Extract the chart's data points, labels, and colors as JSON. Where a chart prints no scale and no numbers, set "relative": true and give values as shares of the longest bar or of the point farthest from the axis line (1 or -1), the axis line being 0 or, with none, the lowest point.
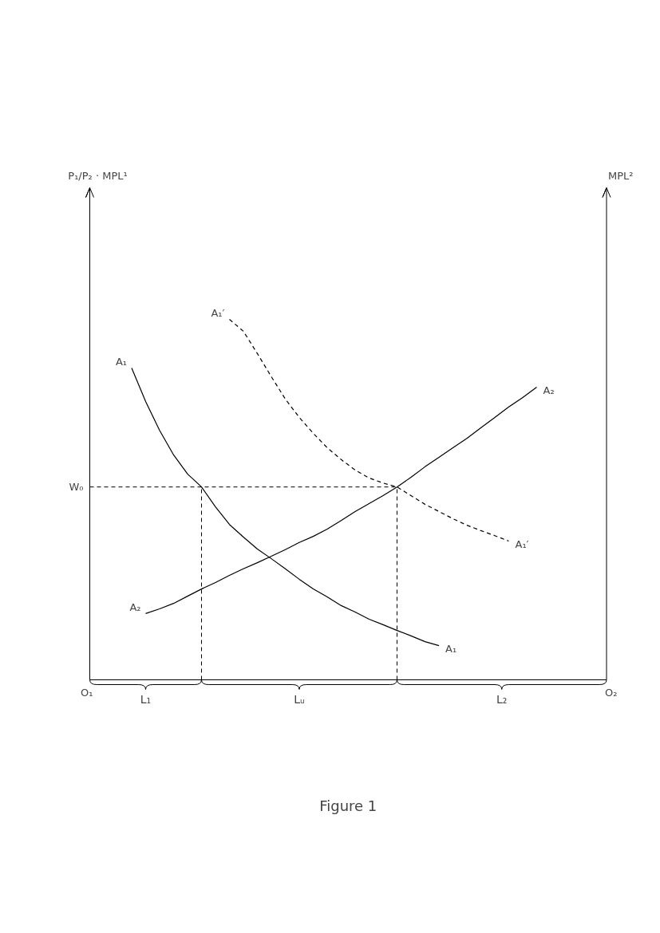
{
  "chart_data": {
    "type": "line",
    "relative": true,
    "title": "Figure 1",
    "grid": false,
    "marker": "none",
    "categories": [
      null,
      null,
      null,
      null,
      null,
      null,
      null,
      null,
      null,
      null,
      null,
      null,
      null,
      null,
      null,
      null,
      null,
      null,
      null,
      null,
      null,
      null,
      null,
      null,
      null,
      null,
      null,
      null,
      null,
      null,
      null,
      null,
      null,
      null,
      null,
      null,
      null,
      null
    ],
    "series": [
      {
        "name": "A₁",
        "color": "#000000",
        "line_style": "solid",
        "values": [
          null,
          null,
          null,
          0.865,
          0.772,
          0.692,
          0.624,
          0.571,
          0.535,
          0.48,
          0.431,
          0.396,
          0.363,
          0.336,
          0.308,
          0.279,
          0.252,
          0.23,
          0.206,
          0.188,
          0.168,
          0.153,
          0.137,
          0.122,
          0.106,
          0.095,
          null,
          null,
          null,
          null,
          null,
          null,
          null,
          null,
          null,
          null,
          null,
          null
        ]
      },
      {
        "name": "A₂",
        "color": "#000000",
        "line_style": "solid",
        "values": [
          null,
          null,
          null,
          null,
          0.184,
          0.197,
          0.212,
          0.232,
          0.252,
          0.27,
          0.29,
          0.308,
          0.325,
          0.343,
          0.361,
          0.381,
          0.398,
          0.418,
          0.442,
          0.467,
          0.489,
          0.511,
          0.535,
          0.562,
          0.591,
          0.617,
          0.644,
          0.67,
          0.699,
          0.728,
          0.757,
          0.783,
          0.812,
          null,
          null,
          null,
          null,
          null
        ]
      },
      {
        "name": "A₁′",
        "color": "#000000",
        "line_style": "dashed",
        "values": [
          null,
          null,
          null,
          null,
          null,
          null,
          null,
          null,
          null,
          null,
          1.0,
          0.967,
          0.905,
          0.841,
          0.779,
          0.728,
          0.684,
          0.644,
          0.611,
          0.582,
          0.56,
          0.546,
          0.535,
          0.511,
          0.487,
          0.467,
          0.447,
          0.429,
          0.414,
          0.4,
          0.385,
          null,
          null,
          null,
          null,
          null,
          null,
          null
        ]
      }
    ],
    "ref_lines": [
      {
        "axis": "y",
        "value": 0.535,
        "label": "W₀",
        "line_style": "dashed"
      }
    ],
    "annotations": [
      "P₁/P₂ · MPL¹",
      "MPL²",
      "O₁",
      "L₁",
      "Lᵤ",
      "L₂",
      "O₂"
    ]
  }
}
